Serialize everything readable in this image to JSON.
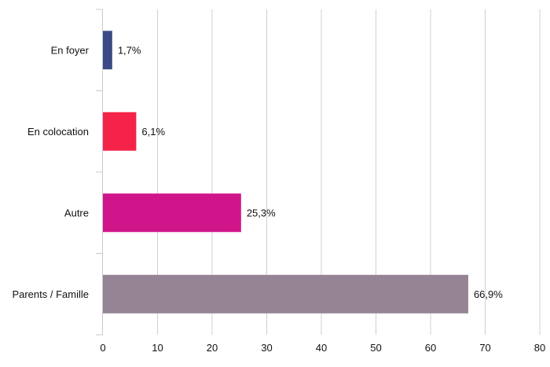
{
  "chart_data": {
    "type": "bar",
    "orientation": "horizontal",
    "title": "",
    "xlabel": "",
    "ylabel": "",
    "xlim": [
      0,
      80
    ],
    "x_ticks": [
      0,
      10,
      20,
      30,
      40,
      50,
      60,
      70,
      80
    ],
    "grid": "vertical",
    "legend": "none",
    "categories": [
      "En foyer",
      "En colocation",
      "Autre",
      "Parents / Famille"
    ],
    "values": [
      1.7,
      6.1,
      25.3,
      66.9
    ],
    "data_labels": [
      "1,7%",
      "6,1%",
      "25,3%",
      "66,9%"
    ],
    "colors": [
      "#3b4a85",
      "#f5234a",
      "#d0158a",
      "#958494"
    ]
  }
}
